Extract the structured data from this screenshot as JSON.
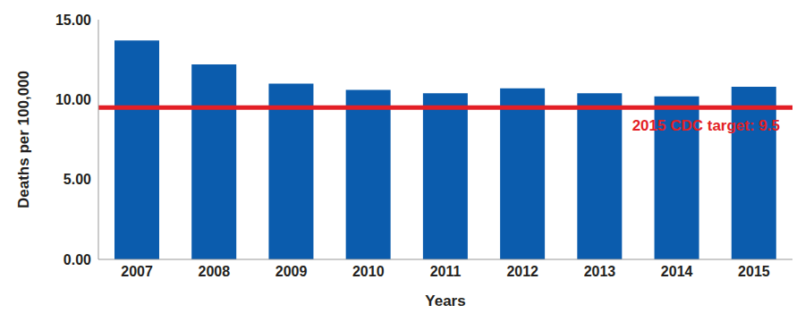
{
  "chart_data": {
    "type": "bar",
    "x_label": "Years",
    "y_label": "Deaths per 100,000",
    "categories": [
      "2007",
      "2008",
      "2009",
      "2010",
      "2011",
      "2012",
      "2013",
      "2014",
      "2015"
    ],
    "values": [
      13.7,
      12.2,
      11.0,
      10.6,
      10.4,
      10.7,
      10.4,
      10.2,
      10.8
    ],
    "color": "#0b5cad",
    "ylim": [
      0,
      15
    ],
    "yticks": [
      {
        "value": 0,
        "label": "0.00"
      },
      {
        "value": 5,
        "label": "5.00"
      },
      {
        "value": 10,
        "label": "10.00"
      },
      {
        "value": 15,
        "label": "15.00"
      }
    ],
    "grid": false,
    "target": {
      "value": 9.5,
      "label": "2015 CDC target: 9.5",
      "color": "#e31f26"
    }
  }
}
